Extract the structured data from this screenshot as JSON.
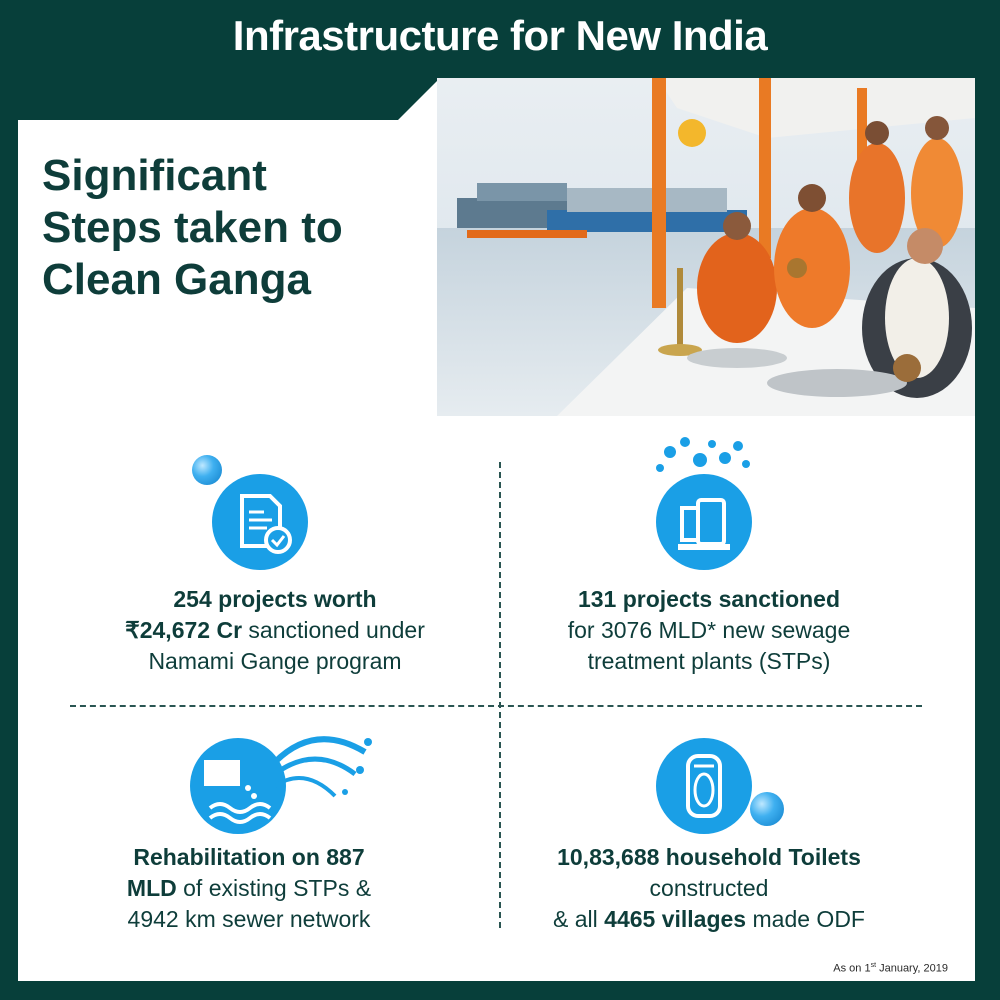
{
  "header": {
    "title": "Infrastructure for New India"
  },
  "headline": {
    "lines": [
      "Significant",
      "Steps taken to",
      "Clean Ganga"
    ]
  },
  "cells": {
    "projects": {
      "bold_1": "254 projects worth",
      "bold_2": "₹24,672 Cr",
      "text_2": " sanctioned under",
      "text_3": "Namami Gange program"
    },
    "stp": {
      "bold_1": "131 projects sanctioned",
      "text_2": "for 3076 MLD* new sewage",
      "text_3": "treatment plants (STPs)"
    },
    "rehab": {
      "bold_1": "Rehabilitation on 887",
      "bold_2": "MLD",
      "text_2": " of existing STPs &",
      "text_3": "4942 km sewer network"
    },
    "toilets": {
      "bold_1": "10,83,688 household Toilets",
      "text_2": "constructed",
      "text_3a": "& all ",
      "bold_3": "4465 villages",
      "text_3b": " made ODF"
    }
  },
  "footnote": {
    "prefix": "As on 1",
    "sup": "st",
    "suffix": " January, 2019"
  },
  "icons": [
    "document-check-icon",
    "water-tap-icon",
    "pipe-outflow-icon",
    "toilet-icon",
    "water-bubble-icon"
  ],
  "colors": {
    "background": "#073f3a",
    "text": "#0e3d3a",
    "icon_blue": "#1a9fe6"
  }
}
